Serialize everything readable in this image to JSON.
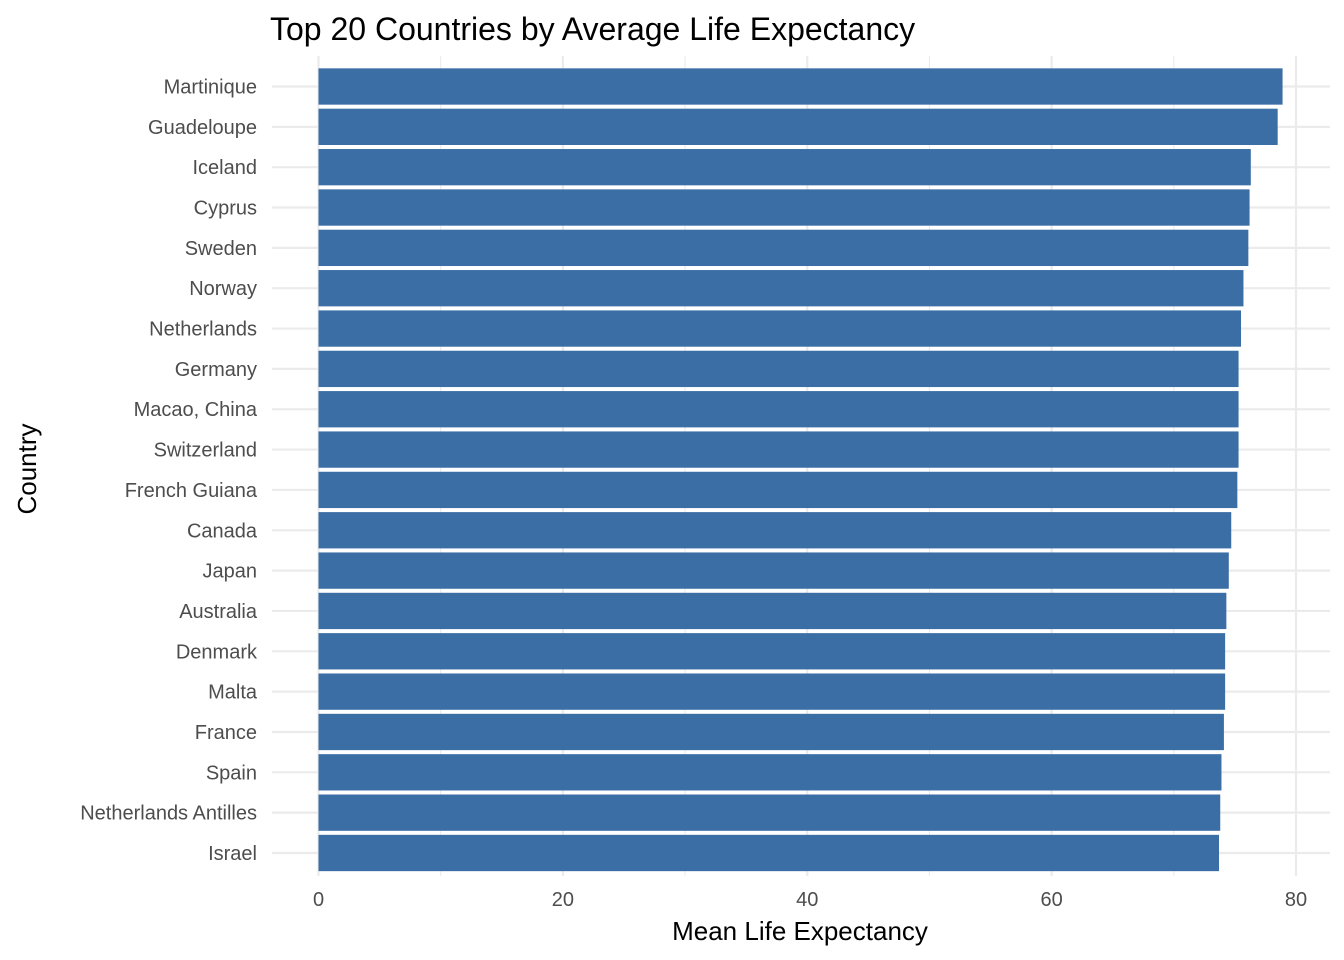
{
  "chart_data": {
    "type": "bar",
    "orientation": "horizontal",
    "title": "Top 20 Countries by Average Life Expectancy",
    "xlabel": "Mean Life Expectancy",
    "ylabel": "Country",
    "xlim": [
      0,
      80
    ],
    "x_ticks": [
      "0",
      "20",
      "40",
      "60",
      "80"
    ],
    "categories": [
      "Martinique",
      "Guadeloupe",
      "Iceland",
      "Cyprus",
      "Sweden",
      "Norway",
      "Netherlands",
      "Germany",
      "Macao, China",
      "Switzerland",
      "French Guiana",
      "Canada",
      "Japan",
      "Australia",
      "Denmark",
      "Malta",
      "France",
      "Spain",
      "Netherlands Antilles",
      "Israel"
    ],
    "values": [
      78.9,
      78.5,
      76.3,
      76.2,
      76.1,
      75.7,
      75.5,
      75.3,
      75.3,
      75.3,
      75.2,
      74.7,
      74.5,
      74.3,
      74.2,
      74.2,
      74.1,
      73.9,
      73.8,
      73.7
    ],
    "bar_color": "#3a6ea5",
    "grid": true
  }
}
